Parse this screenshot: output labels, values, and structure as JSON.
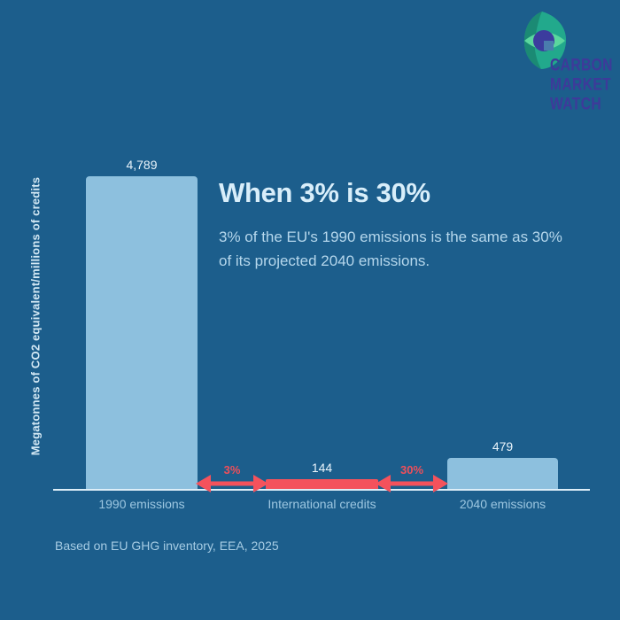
{
  "logo": {
    "icon": "leaf-eye-icon",
    "lines": [
      "CARBON",
      "MARKET",
      "WATCH"
    ]
  },
  "header": {
    "title": "When 3% is 30%",
    "subtitle": "3% of the EU's 1990 emissions is the same as 30% of its projected 2040 emissions."
  },
  "footer": {
    "source": "Based on EU GHG inventory, EEA, 2025"
  },
  "chart_data": {
    "type": "bar",
    "title": "When 3% is 30%",
    "categories": [
      "1990 emissions",
      "International credits",
      "2040 emissions"
    ],
    "values": [
      4789,
      144,
      479
    ],
    "value_labels": [
      "4,789",
      "144",
      "479"
    ],
    "bar_colors": [
      "#8dc0de",
      "#f4525c",
      "#8dc0de"
    ],
    "ylabel": "Megatonnes of CO2 equivalent/millions of credits",
    "xlabel": "",
    "ylim": [
      0,
      5000
    ],
    "grid": false,
    "legend": false,
    "annotations": [
      {
        "label": "3%",
        "between": [
          "1990 emissions",
          "International credits"
        ],
        "style": "double-arrow"
      },
      {
        "label": "30%",
        "between": [
          "International credits",
          "2040 emissions"
        ],
        "style": "double-arrow"
      }
    ],
    "colors": {
      "background": "#1c5e8c",
      "bar_blue": "#8dc0de",
      "accent_red": "#f4525c",
      "axis_line": "#ddeef8",
      "logo_purple": "#3e3a9a"
    }
  }
}
